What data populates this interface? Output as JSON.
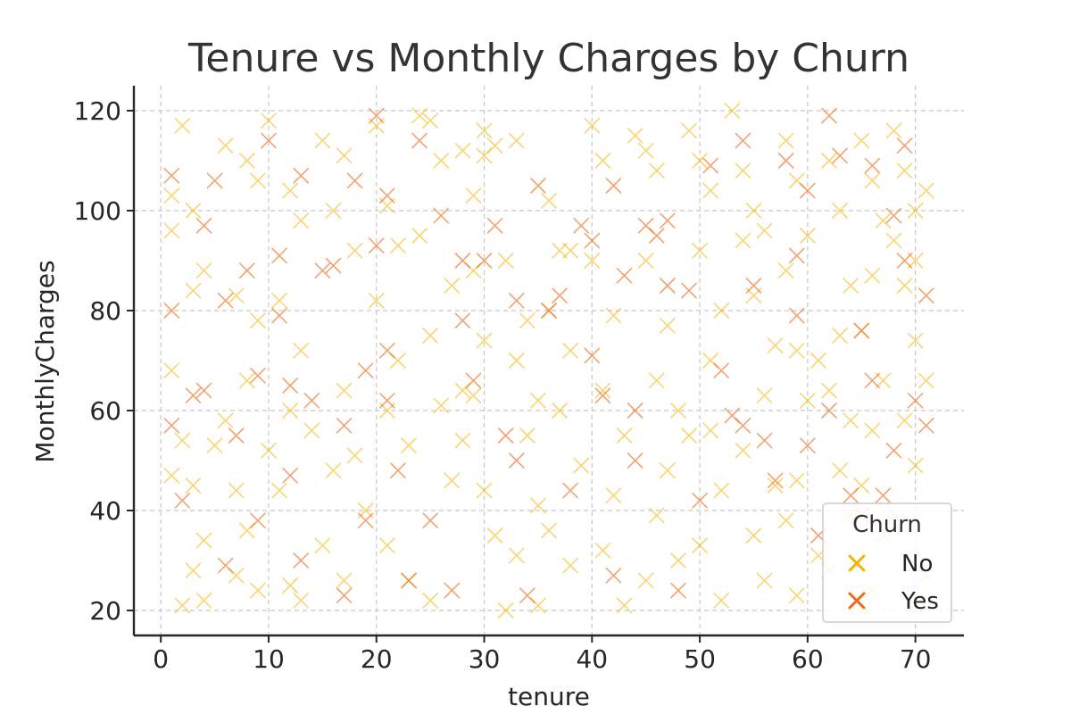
{
  "chart_data": {
    "type": "scatter",
    "title": "Tenure vs Monthly Charges by Churn",
    "xlabel": "tenure",
    "ylabel": "MonthlyCharges",
    "xlim": [
      -2.5,
      74.5
    ],
    "ylim": [
      15,
      125
    ],
    "xticks": [
      0,
      10,
      20,
      30,
      40,
      50,
      60,
      70
    ],
    "yticks": [
      20,
      40,
      60,
      80,
      100,
      120
    ],
    "grid": true,
    "marker": "x",
    "legend": {
      "title": "Churn",
      "placement": "bottom-right"
    },
    "colors": {
      "No": "#F5B400",
      "Yes": "#EE6A1A"
    },
    "series": [
      {
        "name": "No",
        "points": [
          [
            2,
            117
          ],
          [
            1,
            103
          ],
          [
            3,
            100
          ],
          [
            1,
            96
          ],
          [
            4,
            88
          ],
          [
            3,
            84
          ],
          [
            1,
            68
          ],
          [
            2,
            54
          ],
          [
            1,
            47
          ],
          [
            3,
            45
          ],
          [
            4,
            34
          ],
          [
            3,
            28
          ],
          [
            2,
            21
          ],
          [
            4,
            22
          ],
          [
            5,
            53
          ],
          [
            6,
            58
          ],
          [
            7,
            44
          ],
          [
            8,
            36
          ],
          [
            7,
            27
          ],
          [
            9,
            24
          ],
          [
            6,
            113
          ],
          [
            8,
            110
          ],
          [
            9,
            106
          ],
          [
            7,
            83
          ],
          [
            9,
            78
          ],
          [
            8,
            66
          ],
          [
            10,
            118
          ],
          [
            10,
            52
          ],
          [
            12,
            104
          ],
          [
            13,
            98
          ],
          [
            11,
            82
          ],
          [
            13,
            72
          ],
          [
            12,
            60
          ],
          [
            14,
            56
          ],
          [
            11,
            44
          ],
          [
            15,
            33
          ],
          [
            13,
            22
          ],
          [
            12,
            25
          ],
          [
            15,
            114
          ],
          [
            17,
            111
          ],
          [
            16,
            100
          ],
          [
            18,
            92
          ],
          [
            17,
            64
          ],
          [
            16,
            48
          ],
          [
            18,
            51
          ],
          [
            19,
            40
          ],
          [
            17,
            26
          ],
          [
            20,
            117
          ],
          [
            21,
            101
          ],
          [
            22,
            93
          ],
          [
            20,
            82
          ],
          [
            22,
            70
          ],
          [
            21,
            60
          ],
          [
            23,
            53
          ],
          [
            21,
            33
          ],
          [
            23,
            26
          ],
          [
            24,
            119
          ],
          [
            25,
            118
          ],
          [
            26,
            110
          ],
          [
            24,
            95
          ],
          [
            27,
            85
          ],
          [
            25,
            75
          ],
          [
            26,
            61
          ],
          [
            28,
            54
          ],
          [
            27,
            46
          ],
          [
            25,
            22
          ],
          [
            28,
            112
          ],
          [
            29,
            103
          ],
          [
            30,
            116
          ],
          [
            30,
            111
          ],
          [
            29,
            88
          ],
          [
            30,
            74
          ],
          [
            28,
            64
          ],
          [
            29,
            63
          ],
          [
            30,
            44
          ],
          [
            31,
            35
          ],
          [
            32,
            20
          ],
          [
            31,
            113
          ],
          [
            33,
            114
          ],
          [
            32,
            90
          ],
          [
            34,
            78
          ],
          [
            33,
            70
          ],
          [
            35,
            62
          ],
          [
            34,
            55
          ],
          [
            35,
            41
          ],
          [
            33,
            31
          ],
          [
            35,
            21
          ],
          [
            36,
            102
          ],
          [
            37,
            92
          ],
          [
            38,
            92
          ],
          [
            36,
            80
          ],
          [
            38,
            72
          ],
          [
            37,
            60
          ],
          [
            39,
            49
          ],
          [
            36,
            36
          ],
          [
            38,
            29
          ],
          [
            40,
            117
          ],
          [
            41,
            110
          ],
          [
            40,
            90
          ],
          [
            42,
            79
          ],
          [
            41,
            64
          ],
          [
            43,
            55
          ],
          [
            42,
            43
          ],
          [
            41,
            32
          ],
          [
            43,
            21
          ],
          [
            44,
            115
          ],
          [
            45,
            112
          ],
          [
            46,
            108
          ],
          [
            45,
            90
          ],
          [
            47,
            77
          ],
          [
            46,
            66
          ],
          [
            48,
            60
          ],
          [
            47,
            48
          ],
          [
            46,
            39
          ],
          [
            48,
            30
          ],
          [
            45,
            26
          ],
          [
            49,
            116
          ],
          [
            50,
            110
          ],
          [
            51,
            104
          ],
          [
            50,
            92
          ],
          [
            52,
            80
          ],
          [
            51,
            70
          ],
          [
            49,
            55
          ],
          [
            51,
            56
          ],
          [
            52,
            44
          ],
          [
            50,
            33
          ],
          [
            52,
            22
          ],
          [
            53,
            120
          ],
          [
            54,
            108
          ],
          [
            55,
            100
          ],
          [
            54,
            94
          ],
          [
            56,
            96
          ],
          [
            55,
            83
          ],
          [
            57,
            73
          ],
          [
            56,
            63
          ],
          [
            54,
            52
          ],
          [
            57,
            45
          ],
          [
            55,
            35
          ],
          [
            56,
            26
          ],
          [
            58,
            114
          ],
          [
            59,
            106
          ],
          [
            60,
            95
          ],
          [
            58,
            88
          ],
          [
            59,
            72
          ],
          [
            61,
            70
          ],
          [
            60,
            62
          ],
          [
            59,
            46
          ],
          [
            58,
            38
          ],
          [
            61,
            31
          ],
          [
            59,
            23
          ],
          [
            62,
            110
          ],
          [
            63,
            100
          ],
          [
            64,
            85
          ],
          [
            63,
            75
          ],
          [
            62,
            64
          ],
          [
            64,
            58
          ],
          [
            63,
            48
          ],
          [
            64,
            39
          ],
          [
            62,
            28
          ],
          [
            65,
            114
          ],
          [
            66,
            106
          ],
          [
            67,
            98
          ],
          [
            66,
            87
          ],
          [
            65,
            76
          ],
          [
            67,
            66
          ],
          [
            66,
            56
          ],
          [
            65,
            45
          ],
          [
            67,
            35
          ],
          [
            66,
            24
          ],
          [
            68,
            116
          ],
          [
            69,
            108
          ],
          [
            70,
            100
          ],
          [
            68,
            94
          ],
          [
            69,
            85
          ],
          [
            70,
            74
          ],
          [
            71,
            66
          ],
          [
            69,
            58
          ],
          [
            70,
            49
          ],
          [
            68,
            37
          ],
          [
            71,
            27
          ],
          [
            70,
            21
          ],
          [
            71,
            104
          ],
          [
            70,
            90
          ]
        ]
      },
      {
        "name": "Yes",
        "points": [
          [
            1,
            107
          ],
          [
            1,
            80
          ],
          [
            1,
            57
          ],
          [
            2,
            42
          ],
          [
            3,
            63
          ],
          [
            4,
            97
          ],
          [
            4,
            64
          ],
          [
            5,
            106
          ],
          [
            6,
            82
          ],
          [
            6,
            29
          ],
          [
            7,
            55
          ],
          [
            8,
            88
          ],
          [
            9,
            67
          ],
          [
            9,
            38
          ],
          [
            10,
            114
          ],
          [
            11,
            91
          ],
          [
            11,
            79
          ],
          [
            12,
            65
          ],
          [
            12,
            47
          ],
          [
            13,
            107
          ],
          [
            13,
            30
          ],
          [
            14,
            62
          ],
          [
            15,
            88
          ],
          [
            16,
            89
          ],
          [
            17,
            57
          ],
          [
            17,
            23
          ],
          [
            18,
            106
          ],
          [
            19,
            68
          ],
          [
            19,
            38
          ],
          [
            20,
            119
          ],
          [
            20,
            93
          ],
          [
            21,
            103
          ],
          [
            21,
            72
          ],
          [
            21,
            62
          ],
          [
            22,
            48
          ],
          [
            23,
            26
          ],
          [
            24,
            114
          ],
          [
            25,
            38
          ],
          [
            26,
            99
          ],
          [
            27,
            24
          ],
          [
            28,
            90
          ],
          [
            28,
            78
          ],
          [
            29,
            66
          ],
          [
            30,
            90
          ],
          [
            31,
            97
          ],
          [
            32,
            55
          ],
          [
            33,
            82
          ],
          [
            33,
            50
          ],
          [
            34,
            23
          ],
          [
            35,
            105
          ],
          [
            36,
            80
          ],
          [
            37,
            83
          ],
          [
            38,
            44
          ],
          [
            39,
            97
          ],
          [
            40,
            94
          ],
          [
            40,
            71
          ],
          [
            41,
            63
          ],
          [
            42,
            105
          ],
          [
            42,
            27
          ],
          [
            43,
            87
          ],
          [
            44,
            60
          ],
          [
            44,
            50
          ],
          [
            45,
            97
          ],
          [
            46,
            95
          ],
          [
            47,
            98
          ],
          [
            47,
            85
          ],
          [
            48,
            24
          ],
          [
            49,
            84
          ],
          [
            50,
            42
          ],
          [
            51,
            109
          ],
          [
            52,
            68
          ],
          [
            53,
            59
          ],
          [
            54,
            114
          ],
          [
            54,
            57
          ],
          [
            55,
            85
          ],
          [
            56,
            54
          ],
          [
            57,
            46
          ],
          [
            58,
            110
          ],
          [
            59,
            91
          ],
          [
            59,
            79
          ],
          [
            60,
            104
          ],
          [
            60,
            53
          ],
          [
            61,
            35
          ],
          [
            62,
            119
          ],
          [
            62,
            60
          ],
          [
            63,
            111
          ],
          [
            64,
            43
          ],
          [
            65,
            76
          ],
          [
            66,
            109
          ],
          [
            66,
            66
          ],
          [
            67,
            43
          ],
          [
            68,
            52
          ],
          [
            69,
            113
          ],
          [
            69,
            90
          ],
          [
            70,
            62
          ],
          [
            71,
            83
          ],
          [
            71,
            57
          ],
          [
            68,
            99
          ],
          [
            65,
            39
          ]
        ]
      }
    ]
  }
}
